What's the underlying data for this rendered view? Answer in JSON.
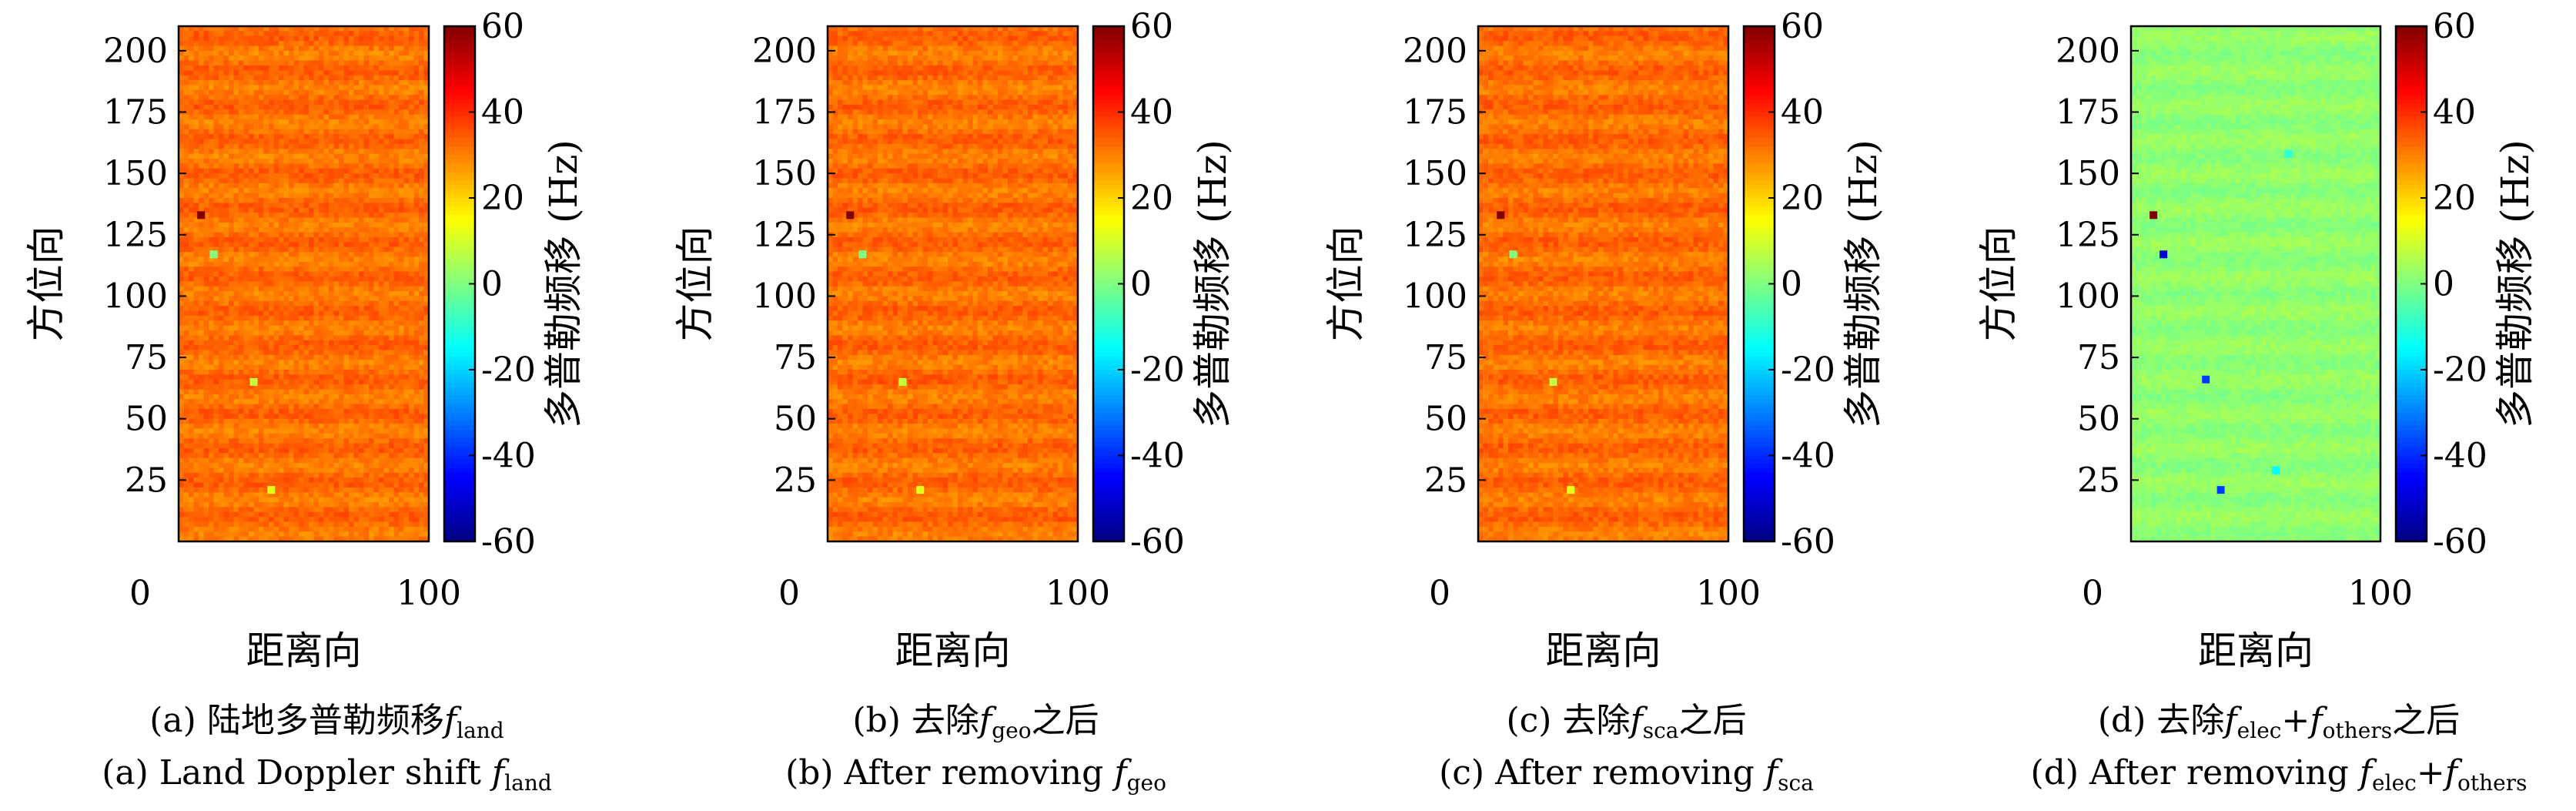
{
  "chart_data": [
    {
      "type": "heatmap",
      "caption_cn": "(a) 陆地多普勒频移",
      "caption_cn_sym": "f",
      "caption_cn_sub": "land",
      "caption_cn_tail": "",
      "caption_en": "(a) Land Doppler shift ",
      "caption_en_sym": "f",
      "caption_en_sub": "land",
      "caption_en_tail": "",
      "xlabel": "距离向",
      "ylabel": "方位向",
      "clabel": "多普勒频移 (Hz)",
      "xlim": [
        0,
        100
      ],
      "ylim": [
        0,
        210
      ],
      "x_ticks": [
        0,
        100
      ],
      "y_ticks": [
        25,
        50,
        75,
        100,
        125,
        150,
        175,
        200
      ],
      "clim": [
        -60,
        60
      ],
      "c_ticks": [
        -60,
        -40,
        -20,
        0,
        20,
        40,
        60
      ],
      "colormap": "jet",
      "field_mean_hz": 32,
      "field_noise_hz": 3,
      "outliers": [
        {
          "x": 9,
          "y": 133,
          "value": 60
        },
        {
          "x": 14,
          "y": 117,
          "value": 0
        },
        {
          "x": 30,
          "y": 65,
          "value": 8
        },
        {
          "x": 37,
          "y": 21,
          "value": 12
        }
      ]
    },
    {
      "type": "heatmap",
      "caption_cn": "(b) 去除",
      "caption_cn_sym": "f",
      "caption_cn_sub": "geo",
      "caption_cn_tail": "之后",
      "caption_en": "(b) After removing ",
      "caption_en_sym": "f",
      "caption_en_sub": "geo",
      "caption_en_tail": "",
      "xlabel": "距离向",
      "ylabel": "方位向",
      "clabel": "多普勒频移 (Hz)",
      "xlim": [
        0,
        100
      ],
      "ylim": [
        0,
        210
      ],
      "x_ticks": [
        0,
        100
      ],
      "y_ticks": [
        25,
        50,
        75,
        100,
        125,
        150,
        175,
        200
      ],
      "clim": [
        -60,
        60
      ],
      "c_ticks": [
        -60,
        -40,
        -20,
        0,
        20,
        40,
        60
      ],
      "colormap": "jet",
      "field_mean_hz": 32,
      "field_noise_hz": 3,
      "outliers": [
        {
          "x": 9,
          "y": 133,
          "value": 60
        },
        {
          "x": 14,
          "y": 117,
          "value": 0
        },
        {
          "x": 30,
          "y": 65,
          "value": 8
        },
        {
          "x": 37,
          "y": 21,
          "value": 12
        }
      ]
    },
    {
      "type": "heatmap",
      "caption_cn": "(c) 去除",
      "caption_cn_sym": "f",
      "caption_cn_sub": "sca",
      "caption_cn_tail": "之后",
      "caption_en": "(c) After removing ",
      "caption_en_sym": "f",
      "caption_en_sub": "sca",
      "caption_en_tail": "",
      "xlabel": "距离向",
      "ylabel": "方位向",
      "clabel": "多普勒频移 (Hz)",
      "xlim": [
        0,
        100
      ],
      "ylim": [
        0,
        210
      ],
      "x_ticks": [
        0,
        100
      ],
      "y_ticks": [
        25,
        50,
        75,
        100,
        125,
        150,
        175,
        200
      ],
      "clim": [
        -60,
        60
      ],
      "c_ticks": [
        -60,
        -40,
        -20,
        0,
        20,
        40,
        60
      ],
      "colormap": "jet",
      "field_mean_hz": 32,
      "field_noise_hz": 3,
      "outliers": [
        {
          "x": 9,
          "y": 133,
          "value": 60
        },
        {
          "x": 14,
          "y": 117,
          "value": 0
        },
        {
          "x": 30,
          "y": 65,
          "value": 8
        },
        {
          "x": 37,
          "y": 21,
          "value": 12
        }
      ]
    },
    {
      "type": "heatmap",
      "caption_cn": "(d) 去除",
      "caption_cn_sym": "f",
      "caption_cn_sub": "elec",
      "caption_cn_tail": "之后",
      "caption_cn_plus": "+",
      "caption_cn_sym2": "f",
      "caption_cn_sub2": "others",
      "caption_en": "(d) After removing ",
      "caption_en_sym": "f",
      "caption_en_sub": "elec",
      "caption_en_plus": "+",
      "caption_en_sym2": "f",
      "caption_en_sub2": "others",
      "caption_en_tail": "",
      "xlabel": "距离向",
      "ylabel": "方位向",
      "clabel": "多普勒频移 (Hz)",
      "xlim": [
        0,
        100
      ],
      "ylim": [
        0,
        210
      ],
      "x_ticks": [
        0,
        100
      ],
      "y_ticks": [
        25,
        50,
        75,
        100,
        125,
        150,
        175,
        200
      ],
      "clim": [
        -60,
        60
      ],
      "c_ticks": [
        -60,
        -40,
        -20,
        0,
        20,
        40,
        60
      ],
      "colormap": "jet",
      "field_mean_hz": 2,
      "field_noise_hz": 2,
      "outliers": [
        {
          "x": 9,
          "y": 133,
          "value": 60
        },
        {
          "x": 13,
          "y": 117,
          "value": -50
        },
        {
          "x": 30,
          "y": 66,
          "value": -38
        },
        {
          "x": 36,
          "y": 21,
          "value": -38
        },
        {
          "x": 58,
          "y": 29,
          "value": -15
        },
        {
          "x": 63,
          "y": 158,
          "value": -10
        }
      ]
    }
  ]
}
